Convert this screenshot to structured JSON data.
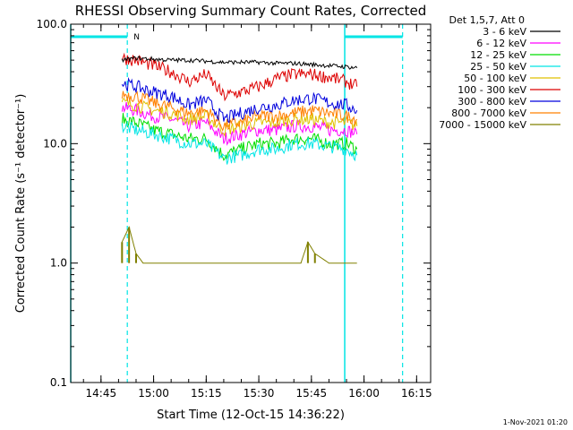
{
  "chart_data": {
    "type": "line",
    "title": "RHESSI Observing Summary Count Rates, Corrected",
    "xlabel": "Start Time (12-Oct-15 14:36:22)",
    "ylabel": "Corrected Count Rate (s⁻¹ detector⁻¹)",
    "y_scale": "log",
    "ylim": [
      0.1,
      100.0
    ],
    "xlim": [
      "14:36:22",
      "16:19:00"
    ],
    "x_ticks": [
      "14:45",
      "15:00",
      "15:15",
      "15:30",
      "15:45",
      "16:00",
      "16:15"
    ],
    "y_ticks": [
      "100.0",
      "10.0",
      "1.0",
      "0.1"
    ],
    "grid": false,
    "legend_position": "top-right outside",
    "legend_header": "Det 1,5,7, Att 0",
    "series": [
      {
        "name": "3 - 6 keV",
        "color": "#000000",
        "x": [
          "14:51",
          "14:55",
          "15:00",
          "15:05",
          "15:10",
          "15:15",
          "15:20",
          "15:25",
          "15:30",
          "15:35",
          "15:40",
          "15:45",
          "15:50",
          "15:55",
          "15:58"
        ],
        "y": [
          50,
          52,
          51,
          50,
          50,
          49,
          48,
          48,
          48,
          47,
          47,
          46,
          45,
          44,
          43
        ]
      },
      {
        "name": "6 - 12 keV",
        "color": "#ff00ff",
        "x": [
          "14:51",
          "14:55",
          "15:00",
          "15:05",
          "15:10",
          "15:15",
          "15:20",
          "15:25",
          "15:30",
          "15:35",
          "15:40",
          "15:45",
          "15:50",
          "15:55",
          "15:58"
        ],
        "y": [
          20,
          19,
          17,
          16,
          14,
          15,
          11,
          12,
          13,
          13,
          14,
          14,
          13,
          13,
          12
        ]
      },
      {
        "name": "12 - 25 keV",
        "color": "#00dd00",
        "x": [
          "14:51",
          "14:55",
          "15:00",
          "15:05",
          "15:10",
          "15:15",
          "15:20",
          "15:25",
          "15:30",
          "15:35",
          "15:40",
          "15:45",
          "15:50",
          "15:55",
          "15:58"
        ],
        "y": [
          16,
          15,
          13,
          12,
          11,
          11,
          8,
          9,
          10,
          10,
          11,
          11,
          10,
          10,
          9
        ]
      },
      {
        "name": "25 - 50 keV",
        "color": "#00e5e5",
        "x": [
          "14:51",
          "14:55",
          "15:00",
          "15:05",
          "15:10",
          "15:15",
          "15:20",
          "15:25",
          "15:30",
          "15:35",
          "15:40",
          "15:45",
          "15:50",
          "15:55",
          "15:58"
        ],
        "y": [
          14,
          13,
          12,
          11,
          10,
          10,
          7.5,
          8,
          9,
          9,
          10,
          10,
          9.5,
          9,
          8
        ]
      },
      {
        "name": "50 - 100 keV",
        "color": "#e0c000",
        "x": [
          "14:51",
          "14:55",
          "15:00",
          "15:05",
          "15:10",
          "15:15",
          "15:20",
          "15:25",
          "15:30",
          "15:35",
          "15:40",
          "15:45",
          "15:50",
          "15:55",
          "15:58"
        ],
        "y": [
          22,
          21,
          19,
          18,
          16,
          17,
          13,
          14,
          15,
          15,
          16,
          16,
          15,
          15,
          14
        ]
      },
      {
        "name": "100 - 300 keV",
        "color": "#dd0000",
        "x": [
          "14:51",
          "14:55",
          "15:00",
          "15:05",
          "15:10",
          "15:15",
          "15:20",
          "15:25",
          "15:30",
          "15:35",
          "15:40",
          "15:45",
          "15:50",
          "15:55",
          "15:58"
        ],
        "y": [
          52,
          50,
          45,
          40,
          33,
          38,
          25,
          27,
          30,
          35,
          38,
          38,
          36,
          33,
          30
        ]
      },
      {
        "name": "300 - 800 keV",
        "color": "#0000dd",
        "x": [
          "14:51",
          "14:55",
          "15:00",
          "15:05",
          "15:10",
          "15:15",
          "15:20",
          "15:25",
          "15:30",
          "15:35",
          "15:40",
          "15:45",
          "15:50",
          "15:55",
          "15:58"
        ],
        "y": [
          32,
          30,
          27,
          25,
          21,
          23,
          16,
          18,
          20,
          21,
          23,
          24,
          22,
          21,
          19
        ]
      },
      {
        "name": "800 - 7000 keV",
        "color": "#ff8000",
        "x": [
          "14:51",
          "14:55",
          "15:00",
          "15:05",
          "15:10",
          "15:15",
          "15:20",
          "15:25",
          "15:30",
          "15:35",
          "15:40",
          "15:45",
          "15:50",
          "15:55",
          "15:58"
        ],
        "y": [
          26,
          25,
          22,
          20,
          18,
          19,
          14,
          15,
          17,
          17,
          18,
          19,
          18,
          17,
          16
        ]
      },
      {
        "name": "7000 - 15000 keV",
        "color": "#808000",
        "x": [
          "14:51",
          "14:53",
          "14:55",
          "14:57",
          "15:00",
          "15:05",
          "15:10",
          "15:20",
          "15:25",
          "15:30",
          "15:35",
          "15:42",
          "15:44",
          "15:46",
          "15:50",
          "15:55",
          "15:58"
        ],
        "y": [
          1.5,
          2.0,
          1.2,
          1.0,
          1.0,
          1.0,
          1.0,
          1.0,
          1.0,
          1.0,
          1.0,
          1.0,
          1.5,
          1.2,
          1.0,
          1.0,
          1.0
        ]
      }
    ],
    "markers": {
      "solid_cyan_vertical": [
        "14:36:22",
        "15:54:30"
      ],
      "dashed_cyan_vertical": [
        "14:52:30",
        "16:11:00"
      ],
      "top_bars": [
        [
          "14:36:22",
          "14:52:30"
        ],
        [
          "15:54:30",
          "16:11:00"
        ]
      ],
      "top_bar_label": "N"
    },
    "footer_timestamp": "1-Nov-2021 01:20"
  }
}
